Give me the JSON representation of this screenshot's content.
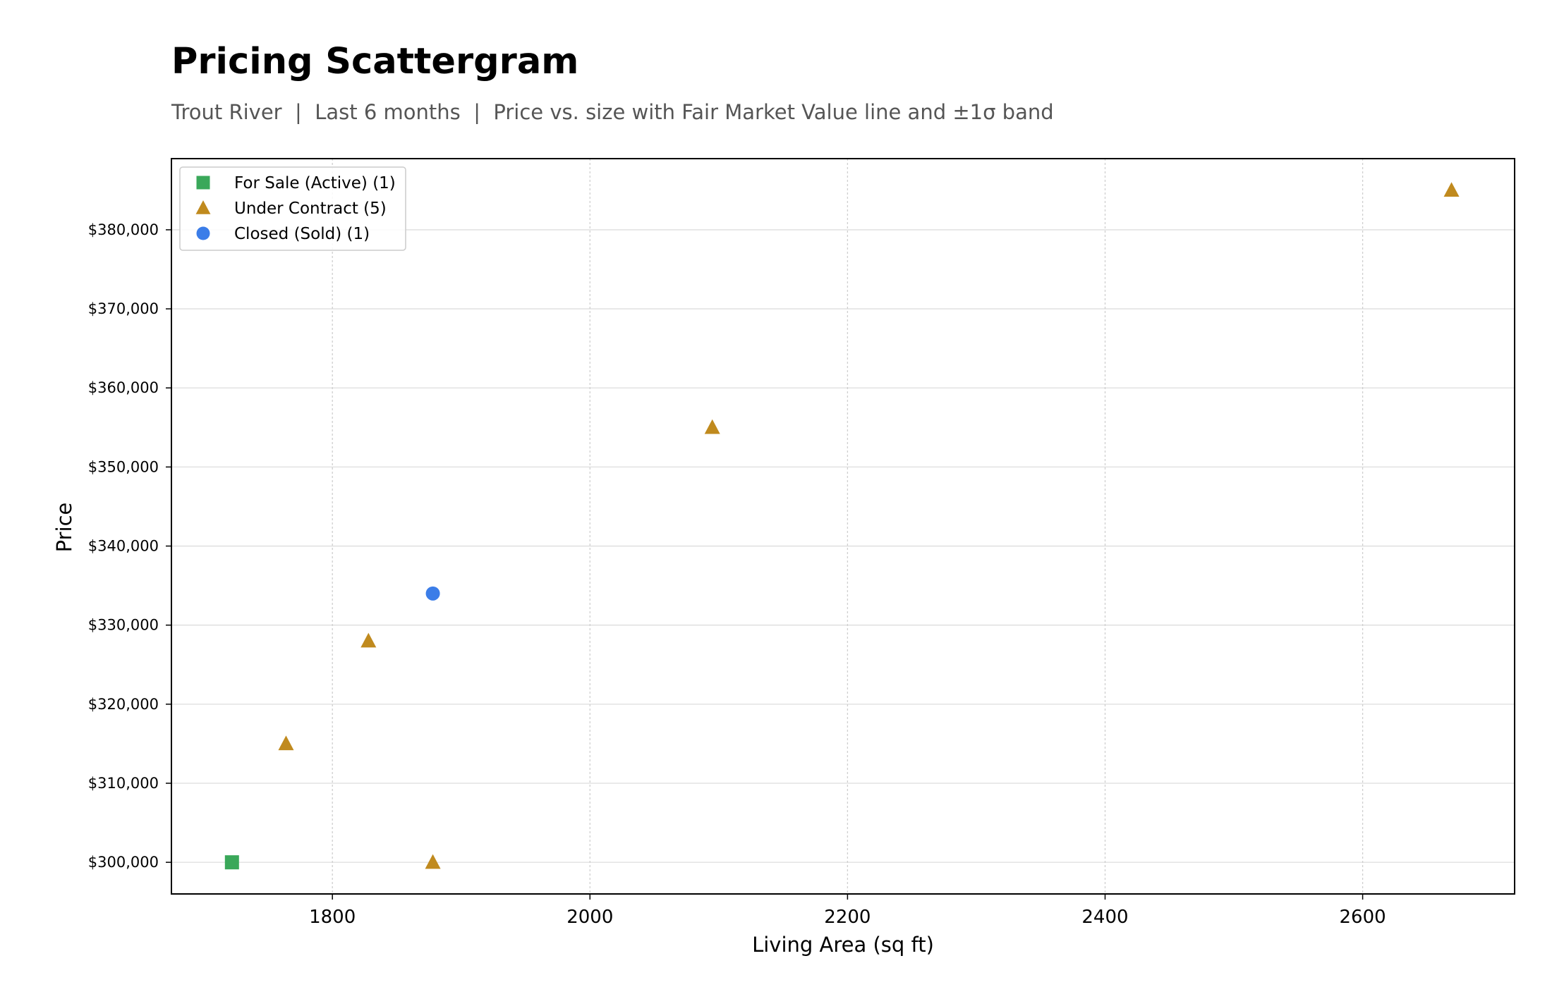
{
  "chart_data": {
    "type": "scatter",
    "title": "Pricing Scattergram",
    "subtitle": "Trout River  |  Last 6 months  |  Price vs. size with Fair Market Value line and ±1σ band",
    "xlabel": "Living Area (sq ft)",
    "ylabel": "Price",
    "xlim": [
      1675,
      2718
    ],
    "ylim": [
      296000,
      389000
    ],
    "x_ticks": [
      1800,
      2000,
      2200,
      2400,
      2600
    ],
    "x_tick_labels": [
      "1800",
      "2000",
      "2200",
      "2400",
      "2600"
    ],
    "y_ticks": [
      300000,
      310000,
      320000,
      330000,
      340000,
      350000,
      360000,
      370000,
      380000
    ],
    "y_tick_labels": [
      "$300,000",
      "$310,000",
      "$320,000",
      "$330,000",
      "$340,000",
      "$350,000",
      "$360,000",
      "$370,000",
      "$380,000"
    ],
    "grid": true,
    "legend_position": "top-left",
    "series": [
      {
        "name": "For Sale (Active) (1)",
        "marker": "square",
        "color": "#3aa85a",
        "points": [
          {
            "x": 1722,
            "y": 300000
          }
        ]
      },
      {
        "name": "Under Contract (5)",
        "marker": "triangle",
        "color": "#c08a1e",
        "points": [
          {
            "x": 1764,
            "y": 315000
          },
          {
            "x": 1828,
            "y": 328000
          },
          {
            "x": 1878,
            "y": 300000
          },
          {
            "x": 2095,
            "y": 355000
          },
          {
            "x": 2669,
            "y": 385000
          }
        ]
      },
      {
        "name": "Closed (Sold) (1)",
        "marker": "circle",
        "color": "#3b7de8",
        "points": [
          {
            "x": 1878,
            "y": 334000
          }
        ]
      }
    ]
  }
}
